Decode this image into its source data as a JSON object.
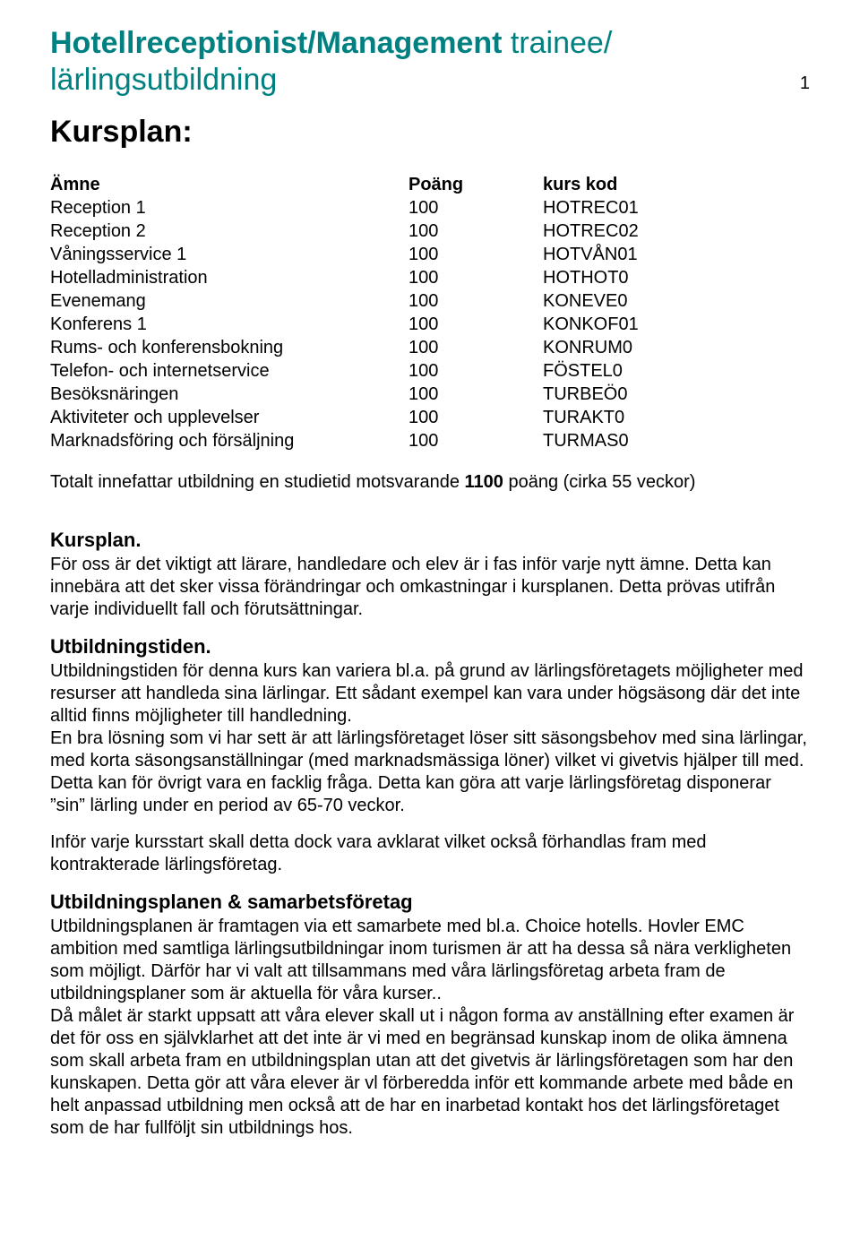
{
  "colors": {
    "accent": "#008080",
    "text": "#000000",
    "background": "#ffffff"
  },
  "fonts": {
    "family": "Arial, Helvetica, sans-serif",
    "title_size": 34,
    "heading_size": 22,
    "body_size": 20
  },
  "page_number": "1",
  "title": {
    "line1_bold": "Hotellreceptionist/Management",
    "line1_light": " trainee/",
    "line2": "lärlingsutbildning"
  },
  "kursplan_heading": "Kursplan:",
  "table": {
    "headers": {
      "subject": "Ämne",
      "points": "Poäng",
      "code": "kurs kod"
    },
    "rows": [
      {
        "subject": "Reception 1",
        "points": "100",
        "code": "HOTREC01"
      },
      {
        "subject": "Reception 2",
        "points": "100",
        "code": "HOTREC02"
      },
      {
        "subject": "Våningsservice 1",
        "points": "100",
        "code": "HOTVÅN01"
      },
      {
        "subject": "Hotelladministration",
        "points": "100",
        "code": "HOTHOT0"
      },
      {
        "subject": "Evenemang",
        "points": "100",
        "code": "KONEVE0"
      },
      {
        "subject": "Konferens 1",
        "points": "100",
        "code": "KONKOF01"
      },
      {
        "subject": "Rums- och konferensbokning",
        "points": "100",
        "code": "KONRUM0"
      },
      {
        "subject": "Telefon- och internetservice",
        "points": "100",
        "code": "FÖSTEL0"
      },
      {
        "subject": "Besöksnäringen",
        "points": "100",
        "code": "TURBEÖ0"
      },
      {
        "subject": "Aktiviteter och upplevelser",
        "points": "100",
        "code": "TURAKT0"
      },
      {
        "subject": "Marknadsföring och försäljning",
        "points": "100",
        "code": "TURMAS0"
      }
    ]
  },
  "summary": {
    "prefix": "Totalt innefattar utbildning en studietid motsvarande ",
    "bold": "1100",
    "suffix": " poäng (cirka 55 veckor)"
  },
  "sections": {
    "kursplan": {
      "heading": "Kursplan.",
      "text": "För oss är det viktigt att lärare, handledare och elev är i fas inför varje nytt ämne. Detta kan innebära att det sker vissa förändringar och omkastningar i kursplanen. Detta prövas utifrån varje individuellt fall och förutsättningar."
    },
    "utbildningstiden": {
      "heading": "Utbildningstiden.",
      "p1": "Utbildningstiden för denna kurs kan variera bl.a. på grund av lärlingsföretagets möjligheter med resurser att handleda sina lärlingar. Ett sådant exempel kan vara under högsäsong där det inte alltid finns möjligheter till handledning.",
      "p2": "En bra lösning som vi har sett är att lärlingsföretaget löser sitt säsongsbehov med sina lärlingar, med korta säsongsanställningar (med marknadsmässiga löner) vilket vi givetvis hjälper till med. Detta kan för övrigt vara en facklig fråga. Detta kan göra att varje lärlingsföretag disponerar ”sin” lärling under en period av 65-70 veckor.",
      "p3": "Inför varje kursstart skall detta dock vara avklarat vilket också förhandlas fram med kontrakterade lärlingsföretag."
    },
    "utbildningsplanen": {
      "heading": "Utbildningsplanen & samarbetsföretag",
      "p1": "Utbildningsplanen är framtagen via ett samarbete med bl.a. Choice hotells. Hovler EMC ambition med samtliga lärlingsutbildningar inom turismen är att ha dessa så nära verkligheten som möjligt. Därför har vi valt att tillsammans med våra lärlingsföretag arbeta fram de utbildningsplaner som är aktuella för våra kurser..",
      "p2": "Då målet är starkt uppsatt att våra elever skall ut i någon forma av anställning efter examen är det för oss en självklarhet att det inte är vi med en begränsad kunskap inom de olika ämnena som skall arbeta fram en utbildningsplan utan att det givetvis är lärlingsföretagen som har den kunskapen. Detta gör att våra elever är vl förberedda inför ett kommande arbete med både en helt anpassad utbildning men också att de har en inarbetad kontakt hos det lärlingsföretaget som de har fullföljt sin utbildnings hos."
    }
  }
}
